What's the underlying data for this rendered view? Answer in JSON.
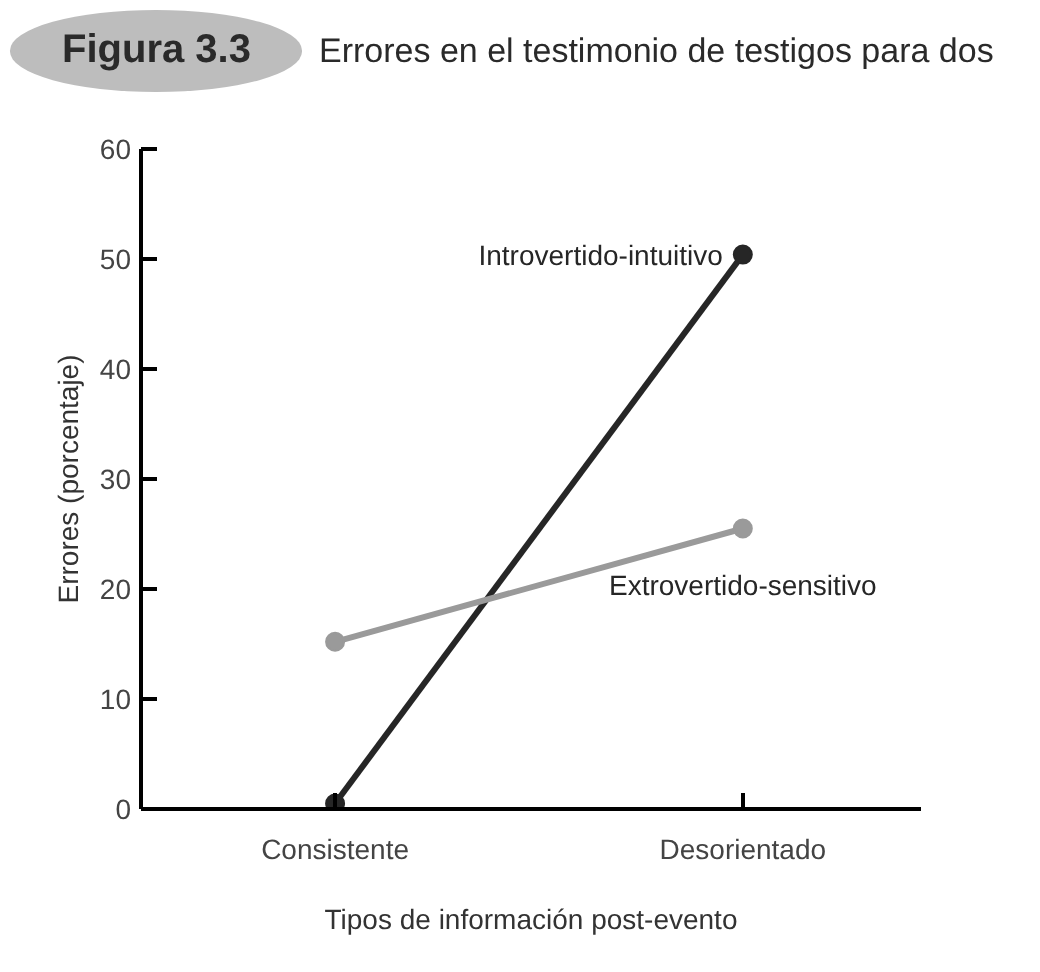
{
  "chart_data": {
    "type": "line",
    "title": "Figura 3.3",
    "subtitle": "Errores en el testimonio de testigos para dos",
    "xlabel": "Tipos de información post-evento",
    "ylabel": "Errores (porcentaje)",
    "categories": [
      "Consistente",
      "Desorientado"
    ],
    "series": [
      {
        "name": "Introvertido-intuitivo",
        "color": "#262626",
        "values": [
          0.5,
          50.4
        ]
      },
      {
        "name": "Extrovertido-sensitivo",
        "color": "#9a9a9a",
        "values": [
          15.2,
          25.5
        ]
      }
    ],
    "ylim": [
      0,
      60
    ],
    "yticks": [
      0,
      10,
      20,
      30,
      40,
      50,
      60
    ],
    "grid": false,
    "marker": "circle",
    "line_style": "solid"
  }
}
